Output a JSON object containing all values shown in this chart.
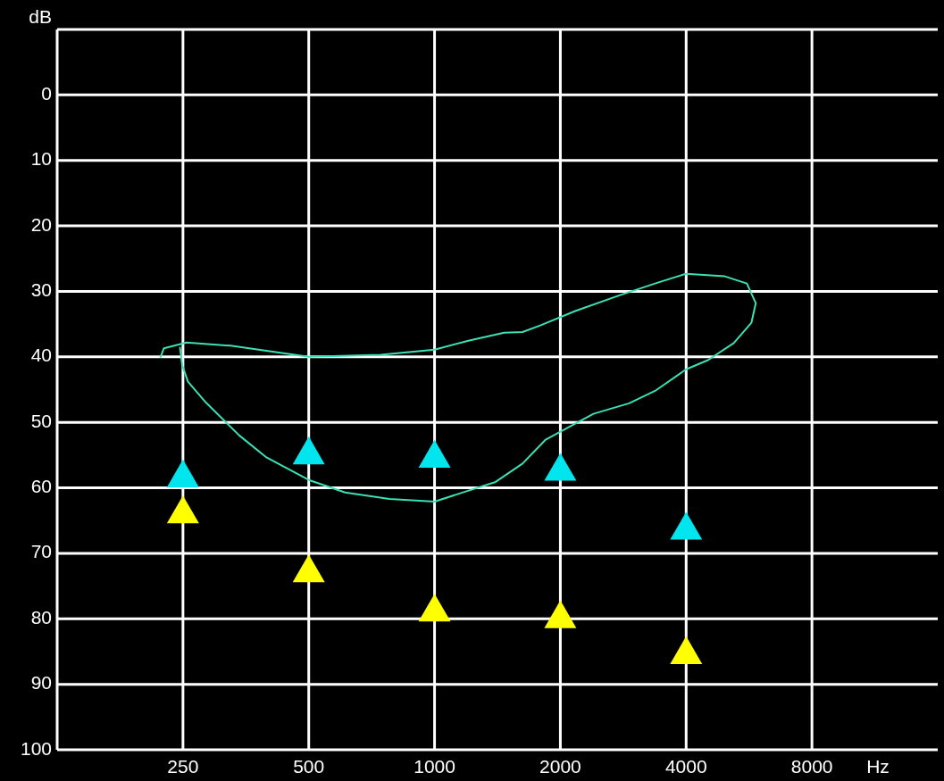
{
  "chart_data": {
    "type": "scatter",
    "ylabel": "dB",
    "xlabel": "Hz",
    "log": "x",
    "grid": true,
    "xlim": [
      125,
      16000
    ],
    "xticks": [
      250,
      500,
      1000,
      2000,
      4000,
      8000
    ],
    "ylim": [
      100,
      -10
    ],
    "yticks": [
      0,
      10,
      20,
      30,
      40,
      50,
      60,
      70,
      80,
      90,
      100
    ],
    "series": [
      {
        "type": "line",
        "color": "#3be0b4",
        "marker": "none",
        "x": [
          221,
          225,
          255,
          325,
          500,
          743,
          1000,
          1211,
          1467,
          1624,
          1790,
          2170,
          2770,
          3370,
          4000,
          4950,
          5590,
          5870,
          5730,
          5200,
          4510,
          4000,
          3370,
          2920,
          2400,
          2070,
          1840,
          1624,
          1400,
          1157,
          1000,
          780,
          611,
          500,
          395,
          341,
          282,
          257,
          249,
          246
        ],
        "values": [
          40,
          38.7,
          37.8,
          38.3,
          40,
          39.7,
          38.9,
          37.5,
          36.3,
          36.2,
          35.2,
          33,
          30.6,
          28.8,
          27.3,
          27.7,
          28.8,
          31.8,
          34.8,
          37.9,
          40.5,
          41.9,
          45.2,
          47.1,
          48.7,
          50.9,
          52.7,
          56.3,
          59.1,
          60.8,
          62.1,
          61.7,
          60.7,
          58.8,
          55.3,
          52,
          46.8,
          43.8,
          41.3,
          38.6
        ]
      },
      {
        "color": "#00e5ee",
        "marker": "triangle",
        "x": [
          250,
          500,
          1000,
          2000,
          4000
        ],
        "values": [
          58.5,
          55,
          55.5,
          57.5,
          66.5
        ]
      },
      {
        "color": "#ffff00",
        "marker": "triangle",
        "x": [
          250,
          500,
          1000,
          2000,
          4000
        ],
        "values": [
          64,
          73,
          79,
          80,
          85.5
        ]
      }
    ]
  }
}
